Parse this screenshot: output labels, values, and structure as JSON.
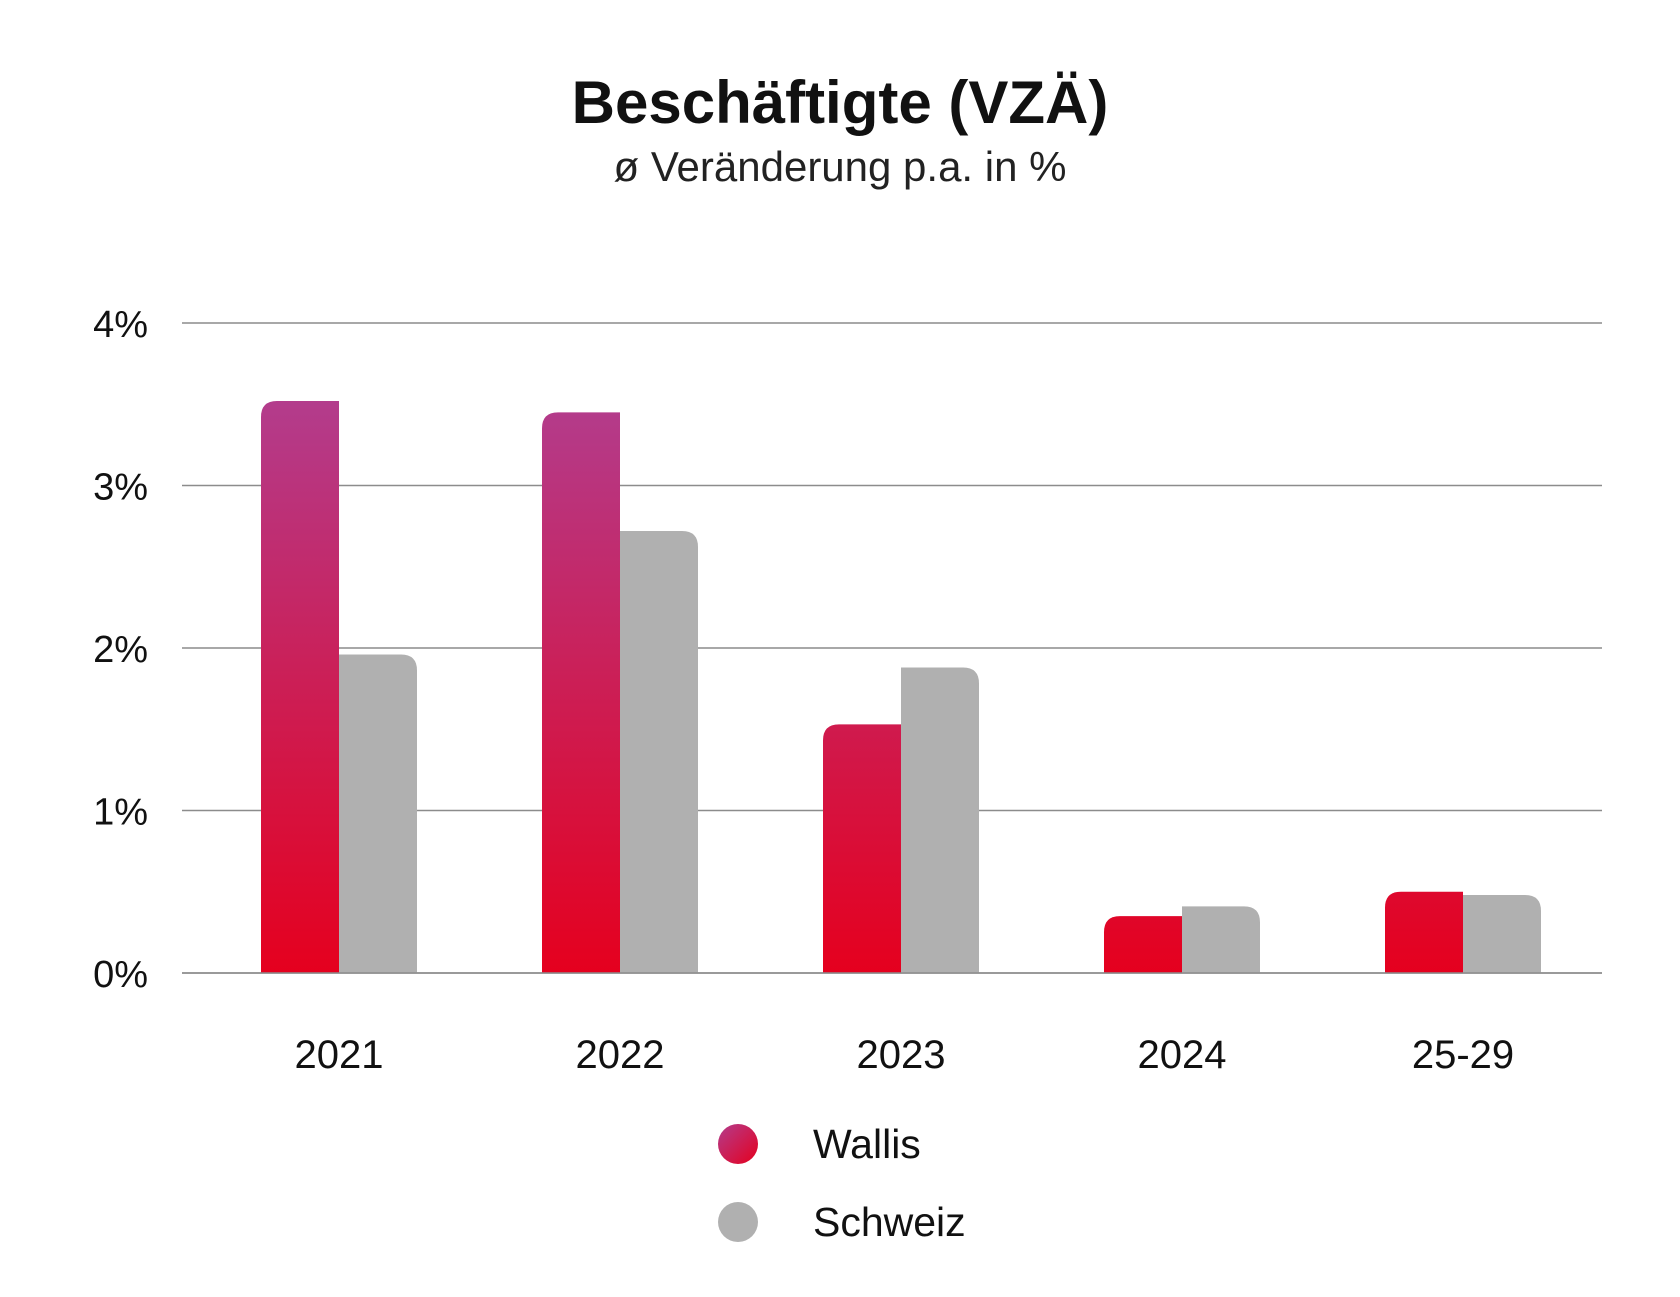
{
  "chart_data": {
    "type": "bar",
    "title": "Beschäftigte (VZÄ)",
    "subtitle": "ø Veränderung p.a. in %",
    "categories": [
      "2021",
      "2022",
      "2023",
      "2024",
      "25-29"
    ],
    "series": [
      {
        "name": "Wallis",
        "values": [
          3.52,
          3.45,
          1.53,
          0.35,
          0.5
        ],
        "color_top": "#b33c8c",
        "color_bottom": "#e5001e"
      },
      {
        "name": "Schweiz",
        "values": [
          1.96,
          2.72,
          1.88,
          0.41,
          0.48
        ],
        "color": "#b0b0b0"
      }
    ],
    "ylim": [
      0,
      4
    ],
    "yticks": [
      {
        "value": 0,
        "label": "0%"
      },
      {
        "value": 1,
        "label": "1%"
      },
      {
        "value": 2,
        "label": "2%"
      },
      {
        "value": 3,
        "label": "3%"
      },
      {
        "value": 4,
        "label": "4%"
      }
    ],
    "grid": true,
    "legend": "bottom"
  }
}
